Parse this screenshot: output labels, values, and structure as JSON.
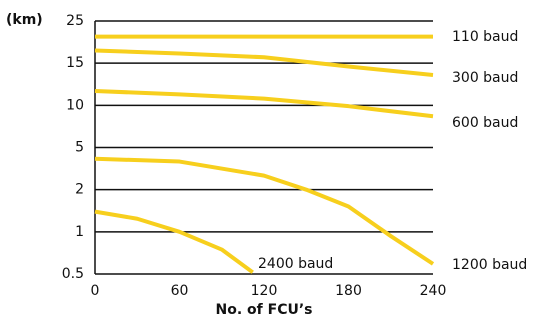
{
  "chart_data": {
    "type": "line",
    "y_label": "(km)",
    "x_label": "No. of FCU’s",
    "xlim": [
      0,
      240
    ],
    "xticks": [
      0,
      60,
      120,
      180,
      240
    ],
    "ylim": [
      0.5,
      25
    ],
    "yticks": [
      0.5,
      1,
      2,
      5,
      10,
      15,
      25
    ],
    "grid": true,
    "series": [
      {
        "name": "110 baud",
        "color": "#f7cf1d",
        "x": [
          0,
          240
        ],
        "values": [
          21.3,
          21.3
        ]
      },
      {
        "name": "300 baud",
        "color": "#f7cf1d",
        "x": [
          0,
          60,
          120,
          180,
          240
        ],
        "values": [
          18,
          17.3,
          16.4,
          14.6,
          13.6
        ]
      },
      {
        "name": "600 baud",
        "color": "#f7cf1d",
        "x": [
          0,
          60,
          120,
          180,
          240
        ],
        "values": [
          11.7,
          11.3,
          10.8,
          9.9,
          8.7
        ]
      },
      {
        "name": "1200 baud",
        "color": "#f7cf1d",
        "x": [
          0,
          60,
          120,
          150,
          180,
          210,
          240
        ],
        "values": [
          4.2,
          4.0,
          3.0,
          2.0,
          1.6,
          0.95,
          0.62
        ]
      },
      {
        "name": "2400 baud",
        "color": "#f7cf1d",
        "x": [
          0,
          30,
          60,
          90,
          112
        ],
        "values": [
          1.48,
          1.31,
          1.0,
          0.79,
          0.52
        ]
      }
    ]
  }
}
